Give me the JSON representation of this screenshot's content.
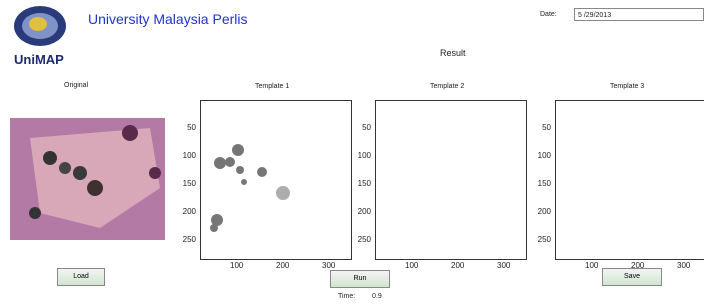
{
  "header": {
    "title": "University Malaysia Perlis",
    "logo_text": "UniMAP",
    "date_label": "Date:",
    "date_value": "5 /29/2013"
  },
  "result_label": "Result",
  "original": {
    "title": "Original"
  },
  "templates": [
    {
      "title": "Template 1",
      "yticks": [
        50,
        100,
        150,
        200,
        250
      ],
      "xticks": [
        100,
        200,
        300
      ]
    },
    {
      "title": "Template 2",
      "yticks": [
        50,
        100,
        150,
        200,
        250
      ],
      "xticks": [
        100,
        200,
        300
      ]
    },
    {
      "title": "Template 3",
      "yticks": [
        50,
        100,
        150,
        200,
        250
      ],
      "xticks": [
        100,
        200,
        300
      ]
    }
  ],
  "buttons": {
    "load": "Load",
    "run": "Run",
    "save": "Save"
  },
  "time": {
    "label": "Time:",
    "value": "0.9"
  }
}
